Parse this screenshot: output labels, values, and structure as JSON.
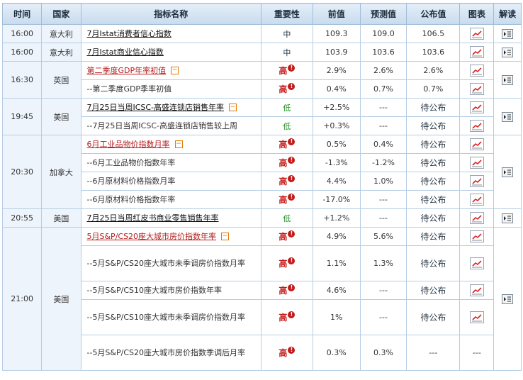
{
  "headers": {
    "time": "时间",
    "country": "国家",
    "name": "指标名称",
    "importance": "重要性",
    "previous": "前值",
    "forecast": "预测值",
    "published": "公布值",
    "chart": "图表",
    "interpret": "解读"
  },
  "importance_labels": {
    "high": "高",
    "mid": "中",
    "low": "低"
  },
  "pending_label": "待公布",
  "dash": "---",
  "colors": {
    "header_bg": "#c8dbee",
    "border": "#b5cde4",
    "high": "#c31818",
    "low": "#1a8d1a",
    "link_red": "#b51c1c"
  },
  "groups": [
    {
      "time": "16:00",
      "country": "意大利",
      "rows": [
        {
          "name": "7月Istat消费者信心指数",
          "style": "link-black",
          "importance": "中",
          "previous": "109.3",
          "forecast": "109.0",
          "published": "106.5"
        }
      ]
    },
    {
      "time": "16:00",
      "country": "意大利",
      "rows": [
        {
          "name": "7月Istat商业信心指数",
          "style": "link-black",
          "importance": "中",
          "previous": "103.9",
          "forecast": "103.6",
          "published": "103.6"
        }
      ]
    },
    {
      "time": "16:30",
      "country": "英国",
      "rows": [
        {
          "name": "第二季度GDP年率初值",
          "style": "link-red",
          "collapse": true,
          "importance": "高",
          "previous": "2.9%",
          "forecast": "2.6%",
          "published": "2.6%"
        },
        {
          "name": "--第二季度GDP季率初值",
          "style": "sub",
          "importance": "高",
          "previous": "0.4%",
          "forecast": "0.7%",
          "published": "0.7%"
        }
      ]
    },
    {
      "time": "19:45",
      "country": "美国",
      "rows": [
        {
          "name": "7月25日当周ICSC-高盛连锁店销售年率",
          "style": "link-black",
          "collapse": true,
          "importance": "低",
          "previous": "+2.5%",
          "forecast": "---",
          "published": "待公布"
        },
        {
          "name": "--7月25日当周ICSC-高盛连锁店销售较上周",
          "style": "sub",
          "importance": "低",
          "previous": "+0.3%",
          "forecast": "---",
          "published": "待公布"
        }
      ]
    },
    {
      "time": "20:30",
      "country": "加拿大",
      "rows": [
        {
          "name": "6月工业品物价指数月率",
          "style": "link-red",
          "collapse": true,
          "importance": "高",
          "previous": "0.5%",
          "forecast": "0.4%",
          "published": "待公布"
        },
        {
          "name": "--6月工业品物价指数年率",
          "style": "sub",
          "importance": "高",
          "previous": "-1.3%",
          "forecast": "-1.2%",
          "published": "待公布"
        },
        {
          "name": "--6月原材料价格指数月率",
          "style": "sub",
          "importance": "高",
          "previous": "4.4%",
          "forecast": "1.0%",
          "published": "待公布"
        },
        {
          "name": "--6月原材料价格指数年率",
          "style": "sub",
          "importance": "高",
          "previous": "-17.0%",
          "forecast": "---",
          "published": "待公布"
        }
      ]
    },
    {
      "time": "20:55",
      "country": "美国",
      "rows": [
        {
          "name": "7月25日当周红皮书商业零售销售年率",
          "style": "link-black",
          "importance": "低",
          "previous": "+1.2%",
          "forecast": "---",
          "published": "待公布"
        }
      ]
    },
    {
      "time": "21:00",
      "country": "美国",
      "rows": [
        {
          "name": "5月S&P/CS20座大城市房价指数年率",
          "style": "link-red",
          "collapse": true,
          "importance": "高",
          "previous": "4.9%",
          "forecast": "5.6%",
          "published": "待公布"
        },
        {
          "name": "--5月S&P/CS20座大城市未季调房价指数月率",
          "style": "sub",
          "importance": "高",
          "previous": "1.1%",
          "forecast": "1.3%",
          "published": "待公布"
        },
        {
          "name": "--5月S&P/CS10座大城市房价指数年率",
          "style": "sub",
          "importance": "高",
          "previous": "4.6%",
          "forecast": "---",
          "published": "待公布"
        },
        {
          "name": "--5月S&P/CS10座大城市未季调房价指数月率",
          "style": "sub",
          "importance": "高",
          "previous": "1%",
          "forecast": "---",
          "published": "待公布"
        },
        {
          "name": "--5月S&P/CS20座大城市房价指数季调后月率",
          "style": "sub",
          "importance": "高",
          "previous": "0.3%",
          "forecast": "0.3%",
          "published": "---",
          "no_chart": true
        }
      ]
    }
  ]
}
